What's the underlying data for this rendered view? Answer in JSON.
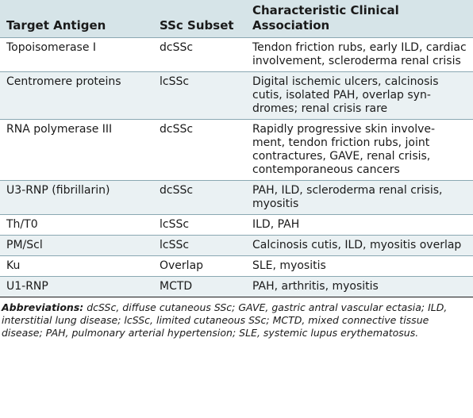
{
  "table": {
    "headers": [
      "Target Antigen",
      "SSc Subset",
      "Characteristic Clinical Association"
    ],
    "rows": [
      [
        "Topoisomerase I",
        "dcSSc",
        "Tendon friction rubs, early ILD, cardiac involvement, scleroderma renal crisis"
      ],
      [
        "Centromere proteins",
        "lcSSc",
        "Digital ischemic ulcers, calcinosis cutis, isolated PAH, overlap syn-dromes; renal crisis rare"
      ],
      [
        "RNA polymerase III",
        "dcSSc",
        "Rapidly progressive skin involve-ment, tendon friction rubs, joint contractures, GAVE, renal crisis, contemporaneous cancers"
      ],
      [
        "U3-RNP (fibrillarin)",
        "dcSSc",
        "PAH, ILD, scleroderma renal crisis, myositis"
      ],
      [
        "Th/T0",
        "lcSSc",
        "ILD, PAH"
      ],
      [
        "PM/Scl",
        "lcSSc",
        "Calcinosis cutis, ILD, myositis overlap"
      ],
      [
        "Ku",
        "Overlap",
        "SLE, myositis"
      ],
      [
        "U1-RNP",
        "MCTD",
        "PAH, arthritis, myositis"
      ]
    ]
  },
  "footnote": {
    "label": "Abbreviations:",
    "text": "dcSSc, diffuse cutaneous SSc; GAVE, gastric antral vascular ectasia; ILD, interstitial lung disease; lcSSc, limited cutaneous SSc; MCTD, mixed connective tissue disease; PAH, pulmonary arterial hypertension; SLE, systemic lupus erythematosus."
  },
  "colors": {
    "header_bg": "#d6e4e8",
    "band_bg": "#eaf1f3",
    "rule": "#8aa8b2"
  }
}
